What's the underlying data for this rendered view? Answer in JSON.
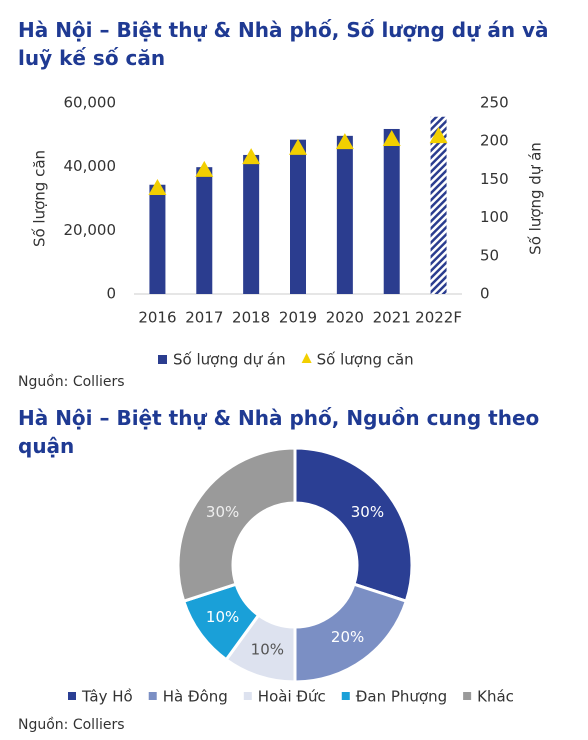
{
  "chart_data": [
    {
      "type": "bar_line",
      "title": "Hà Nội – Biệt thự & Nhà phố, Số lượng dự án và luỹ kế số căn",
      "categories": [
        "2016",
        "2017",
        "2018",
        "2019",
        "2020",
        "2021",
        "2022F"
      ],
      "series": [
        {
          "name": "Số lượng dự án",
          "color": "#2b3d8f",
          "axis": "y2",
          "marker": "bar",
          "values": [
            143,
            166,
            182,
            202,
            207,
            216,
            232
          ]
        },
        {
          "name": "Số lượng căn",
          "color": "#f2cf00",
          "marker": "triangle",
          "values": [
            33300,
            39000,
            43000,
            45900,
            47700,
            48700,
            49600
          ]
        }
      ],
      "hatch_last": true,
      "ylabel": "Số lượng căn",
      "y2label": "Số lượng dự án",
      "ylim": [
        0,
        60000
      ],
      "yticks": [
        0,
        {
          "value": 20000,
          "label": "20,000"
        },
        {
          "value": 40000,
          "label": "40,000"
        },
        {
          "value": 60000,
          "label": "60,000"
        }
      ],
      "y2lim": [
        0,
        250
      ],
      "y2ticks": [
        0,
        50,
        100,
        150,
        200,
        250
      ],
      "source": "Nguồn: Colliers"
    },
    {
      "type": "donut",
      "title": "Hà Nội – Biệt thự & Nhà phố, Nguồn cung theo quận",
      "categories": [
        "Tây Hồ",
        "Hà Đông",
        "Hoài Đức",
        "Đan Phượng",
        "Khác"
      ],
      "values": [
        30,
        20,
        10,
        10,
        30
      ],
      "value_labels": [
        "30%",
        "20%",
        "10%",
        "10%",
        "30%"
      ],
      "colors": [
        "#2b3f94",
        "#7b8fc4",
        "#dde2ef",
        "#1aa0d8",
        "#9a9a9a"
      ],
      "source": "Nguồn: Colliers"
    }
  ]
}
